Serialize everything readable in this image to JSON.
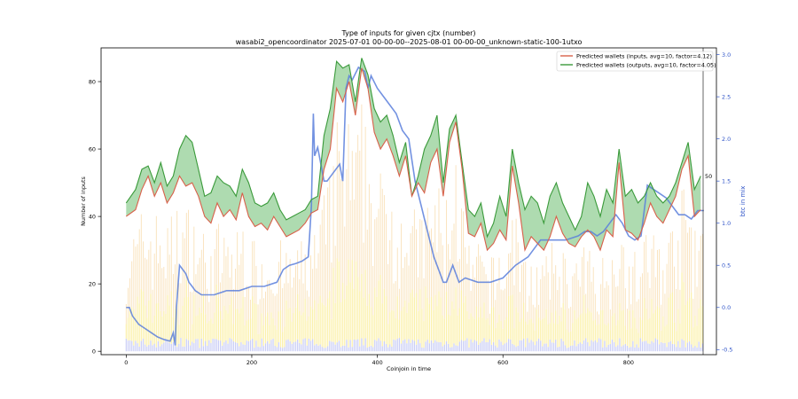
{
  "chart_data": {
    "type": "line",
    "title": "Type of inputs for given cjtx (number)",
    "subtitle": "wasabi2_opencoordinator 2025-07-01 00-00-00--2025-08-01 00-00-00_unknown-static-100-1utxo",
    "xlabel": "Coinjoin in time",
    "ylabel": "Number of inputs",
    "ylabel_right": "btc in mix",
    "xlim": [
      -40,
      940
    ],
    "ylim": [
      -1,
      90
    ],
    "ylim_right": [
      -0.56,
      3.08
    ],
    "x_ticks": [
      0,
      200,
      400,
      600,
      800
    ],
    "y_ticks": [
      0,
      20,
      40,
      60,
      80
    ],
    "y_ticks_right": [
      -0.5,
      0.0,
      0.5,
      1.0,
      1.5,
      2.0,
      2.5,
      3.0
    ],
    "right_marker_label": "50",
    "legend_position": "top-right",
    "colors": {
      "inputs": "#d9604a",
      "outputs": "#3a9a3a",
      "fill": "#4caf50",
      "btc": "#5b7fdc",
      "bars_light": "#f8d9a8",
      "bars_yellow": "#fbf0a8",
      "bars_blue": "#c9cdf5"
    },
    "series": [
      {
        "name": "Predicted wallets (inputs, avg=10, factor=4.12)",
        "x": [
          0,
          15,
          25,
          35,
          45,
          55,
          65,
          75,
          85,
          95,
          105,
          115,
          125,
          135,
          145,
          155,
          165,
          175,
          185,
          195,
          205,
          215,
          225,
          235,
          245,
          255,
          265,
          275,
          285,
          295,
          305,
          315,
          325,
          335,
          345,
          355,
          365,
          375,
          385,
          395,
          405,
          415,
          425,
          435,
          445,
          455,
          465,
          475,
          485,
          495,
          505,
          515,
          525,
          535,
          545,
          555,
          565,
          575,
          585,
          595,
          605,
          615,
          625,
          635,
          645,
          655,
          665,
          675,
          685,
          695,
          705,
          715,
          725,
          735,
          745,
          755,
          765,
          775,
          785,
          795,
          805,
          815,
          825,
          835,
          845,
          855,
          865,
          875,
          885,
          895,
          905,
          915
        ],
        "values": [
          40,
          42,
          48,
          52,
          46,
          50,
          44,
          47,
          52,
          49,
          50,
          46,
          40,
          38,
          44,
          40,
          42,
          39,
          47,
          40,
          37,
          38,
          36,
          40,
          37,
          34,
          35,
          36,
          38,
          41,
          42,
          54,
          60,
          78,
          74,
          80,
          70,
          84,
          78,
          65,
          60,
          63,
          58,
          52,
          58,
          46,
          50,
          47,
          56,
          60,
          46,
          62,
          68,
          54,
          35,
          34,
          38,
          30,
          32,
          36,
          33,
          55,
          44,
          30,
          34,
          32,
          30,
          34,
          40,
          35,
          32,
          31,
          34,
          36,
          34,
          30,
          36,
          34,
          56,
          36,
          35,
          33,
          38,
          44,
          40,
          38,
          42,
          46,
          54,
          58,
          40,
          42
        ]
      },
      {
        "name": "Predicted wallets (outputs, avg=10, factor=4.05)",
        "x": [
          0,
          15,
          25,
          35,
          45,
          55,
          65,
          75,
          85,
          95,
          105,
          115,
          125,
          135,
          145,
          155,
          165,
          175,
          185,
          195,
          205,
          215,
          225,
          235,
          245,
          255,
          265,
          275,
          285,
          295,
          305,
          315,
          325,
          335,
          345,
          355,
          365,
          375,
          385,
          395,
          405,
          415,
          425,
          435,
          445,
          455,
          465,
          475,
          485,
          495,
          505,
          515,
          525,
          535,
          545,
          555,
          565,
          575,
          585,
          595,
          605,
          615,
          625,
          635,
          645,
          655,
          665,
          675,
          685,
          695,
          705,
          715,
          725,
          735,
          745,
          755,
          765,
          775,
          785,
          795,
          805,
          815,
          825,
          835,
          845,
          855,
          865,
          875,
          885,
          895,
          905,
          915
        ],
        "values": [
          44,
          48,
          54,
          55,
          50,
          56,
          49,
          52,
          60,
          64,
          62,
          54,
          46,
          47,
          52,
          50,
          49,
          46,
          54,
          50,
          44,
          43,
          44,
          47,
          42,
          39,
          40,
          41,
          42,
          45,
          46,
          64,
          72,
          86,
          84,
          85,
          74,
          87,
          82,
          72,
          68,
          70,
          64,
          56,
          62,
          46,
          52,
          60,
          64,
          70,
          50,
          66,
          70,
          56,
          42,
          40,
          44,
          34,
          38,
          46,
          40,
          60,
          50,
          42,
          46,
          44,
          38,
          46,
          50,
          44,
          40,
          36,
          40,
          50,
          46,
          40,
          48,
          44,
          60,
          46,
          48,
          44,
          46,
          50,
          46,
          44,
          46,
          50,
          56,
          62,
          48,
          52
        ]
      },
      {
        "name": "btc in mix",
        "axis": "right",
        "x": [
          0,
          5,
          10,
          20,
          30,
          40,
          50,
          60,
          70,
          75,
          78,
          80,
          85,
          90,
          95,
          100,
          105,
          110,
          120,
          140,
          160,
          180,
          200,
          220,
          240,
          250,
          260,
          270,
          280,
          290,
          295,
          298,
          300,
          305,
          310,
          315,
          320,
          330,
          340,
          345,
          350,
          355,
          360,
          370,
          380,
          385,
          390,
          400,
          410,
          420,
          430,
          440,
          450,
          460,
          470,
          480,
          490,
          500,
          505,
          510,
          520,
          530,
          540,
          560,
          580,
          600,
          620,
          640,
          660,
          680,
          700,
          720,
          730,
          740,
          750,
          760,
          770,
          780,
          790,
          800,
          810,
          820,
          830,
          840,
          850,
          860,
          870,
          880,
          890,
          900,
          910,
          920
        ],
        "values": [
          0.0,
          0.0,
          -0.1,
          -0.2,
          -0.25,
          -0.3,
          -0.35,
          -0.38,
          -0.4,
          -0.3,
          -0.45,
          0.0,
          0.5,
          0.45,
          0.4,
          0.3,
          0.25,
          0.2,
          0.15,
          0.15,
          0.2,
          0.2,
          0.25,
          0.25,
          0.3,
          0.45,
          0.5,
          0.52,
          0.55,
          0.6,
          1.2,
          2.3,
          1.8,
          1.9,
          1.7,
          1.5,
          1.5,
          1.6,
          1.7,
          1.5,
          2.6,
          2.75,
          2.7,
          2.85,
          2.8,
          2.6,
          2.75,
          2.6,
          2.5,
          2.4,
          2.3,
          2.1,
          2.0,
          1.5,
          1.2,
          0.9,
          0.6,
          0.4,
          0.3,
          0.3,
          0.5,
          0.3,
          0.35,
          0.3,
          0.3,
          0.35,
          0.5,
          0.6,
          0.8,
          0.8,
          0.8,
          0.85,
          0.9,
          0.9,
          0.85,
          0.9,
          1.0,
          1.1,
          1.0,
          0.85,
          0.8,
          0.85,
          1.45,
          1.4,
          1.35,
          1.3,
          1.2,
          1.1,
          1.1,
          1.05,
          1.15,
          1.15
        ]
      }
    ]
  }
}
